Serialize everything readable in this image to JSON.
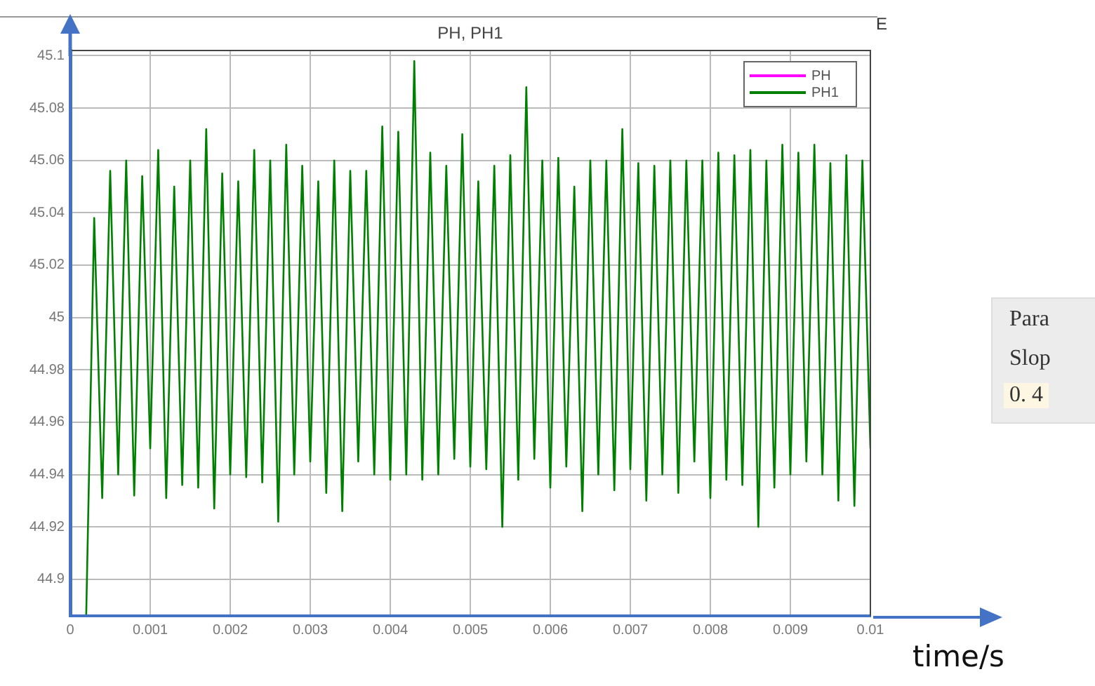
{
  "chart_data": {
    "type": "line",
    "title": "PH, PH1",
    "xlabel": "time/s",
    "xlim": [
      0,
      0.01
    ],
    "xticks": [
      0,
      0.001,
      0.002,
      0.003,
      0.004,
      0.005,
      0.006,
      0.007,
      0.008,
      0.009,
      0.01
    ],
    "ylim": [
      44.886,
      45.102
    ],
    "yticks": [
      44.9,
      44.92,
      44.94,
      44.96,
      44.98,
      45,
      45.02,
      45.04,
      45.06,
      45.08,
      45.1
    ],
    "x": [
      0.0002,
      0.0003,
      0.0004,
      0.0005,
      0.0006,
      0.0007,
      0.0008,
      0.0009,
      0.001,
      0.0011,
      0.0012,
      0.0013,
      0.0014,
      0.0015,
      0.0016,
      0.0017,
      0.0018,
      0.0019,
      0.002,
      0.0021,
      0.0022,
      0.0023,
      0.0024,
      0.0025,
      0.0026,
      0.0027,
      0.0028,
      0.0029,
      0.003,
      0.0031,
      0.0032,
      0.0033,
      0.0034,
      0.0035,
      0.0036,
      0.0037,
      0.0038,
      0.0039,
      0.004,
      0.0041,
      0.0042,
      0.0043,
      0.0044,
      0.0045,
      0.0046,
      0.0047,
      0.0048,
      0.0049,
      0.005,
      0.0051,
      0.0052,
      0.0053,
      0.0054,
      0.0055,
      0.0056,
      0.0057,
      0.0058,
      0.0059,
      0.006,
      0.0061,
      0.0062,
      0.0063,
      0.0064,
      0.0065,
      0.0066,
      0.0067,
      0.0068,
      0.0069,
      0.007,
      0.0071,
      0.0072,
      0.0073,
      0.0074,
      0.0075,
      0.0076,
      0.0077,
      0.0078,
      0.0079,
      0.008,
      0.0081,
      0.0082,
      0.0083,
      0.0084,
      0.0085,
      0.0086,
      0.0087,
      0.0088,
      0.0089,
      0.009,
      0.0091,
      0.0092,
      0.0093,
      0.0094,
      0.0095,
      0.0096,
      0.0097,
      0.0098,
      0.0099,
      0.01
    ],
    "grid": true,
    "legend": "top right",
    "marker": "none",
    "line_style": "solid",
    "annotations": [
      "Para",
      "Slop",
      "0. 4",
      "E"
    ],
    "series": [
      {
        "name": "PH",
        "color": "#ff00ff",
        "values": [
          null,
          null,
          null,
          null,
          null,
          null,
          null,
          null,
          null,
          null,
          null,
          null,
          null,
          null,
          null,
          null,
          null,
          null,
          null,
          null,
          null,
          null,
          null,
          null,
          null,
          null,
          null,
          null,
          null,
          null,
          null,
          null,
          null,
          null,
          null,
          null,
          null,
          null,
          null,
          null,
          null,
          null,
          null,
          null,
          null,
          null,
          null,
          null,
          null,
          null,
          null,
          null,
          null,
          null,
          null,
          null,
          null,
          null,
          null,
          null,
          null,
          null,
          null,
          null,
          null,
          null,
          null,
          null,
          null,
          null,
          null,
          null,
          null,
          null,
          null,
          null,
          null,
          null,
          null,
          null,
          null,
          null,
          null,
          null,
          null,
          null,
          null,
          null,
          null,
          null,
          null,
          null,
          null,
          null,
          null,
          null,
          null,
          null,
          null
        ]
      },
      {
        "name": "PH1",
        "color": "#008000",
        "values": [
          44.886,
          45.038,
          44.931,
          45.056,
          44.94,
          45.06,
          44.932,
          45.054,
          44.95,
          45.064,
          44.931,
          45.05,
          44.936,
          45.06,
          44.935,
          45.072,
          44.927,
          45.055,
          44.94,
          45.052,
          44.939,
          45.064,
          44.937,
          45.06,
          44.922,
          45.066,
          44.94,
          45.058,
          44.945,
          45.052,
          44.933,
          45.06,
          44.926,
          45.056,
          44.945,
          45.056,
          44.94,
          45.073,
          44.938,
          45.071,
          44.94,
          45.098,
          44.938,
          45.063,
          44.94,
          45.058,
          44.946,
          45.07,
          44.943,
          45.052,
          44.942,
          45.058,
          44.92,
          45.062,
          44.938,
          45.088,
          44.946,
          45.06,
          44.935,
          45.061,
          44.943,
          45.05,
          44.926,
          45.06,
          44.94,
          45.06,
          44.934,
          45.072,
          44.942,
          45.059,
          44.93,
          45.058,
          44.94,
          45.06,
          44.933,
          45.06,
          44.945,
          45.06,
          44.931,
          45.063,
          44.938,
          45.062,
          44.936,
          45.064,
          44.92,
          45.06,
          44.935,
          45.066,
          44.94,
          45.063,
          44.945,
          45.066,
          44.94,
          45.059,
          44.93,
          45.062,
          44.928,
          45.06,
          44.95
        ]
      }
    ]
  }
}
